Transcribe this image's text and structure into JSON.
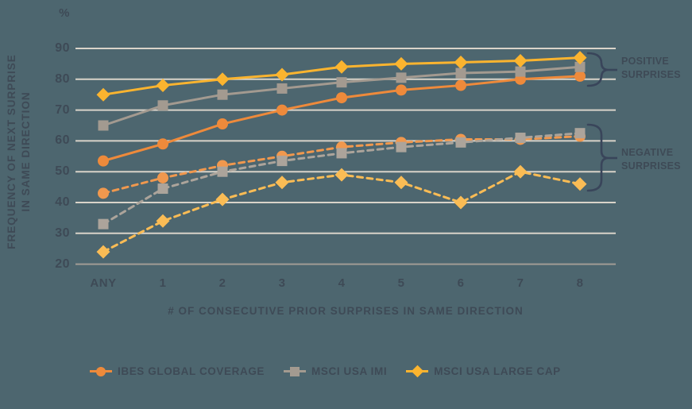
{
  "chart_data": {
    "type": "line",
    "unit_label": "%",
    "xlabel": "# OF CONSECUTIVE PRIOR SURPRISES IN SAME DIRECTION",
    "ylabel": "FREQUENCY OF NEXT SURPRISE IN SAME DIRECTION",
    "ylabel_lines": [
      "FREQUENCY OF NEXT SURPRISE",
      "IN SAME DIRECTION"
    ],
    "categories": [
      "ANY",
      "1",
      "2",
      "3",
      "4",
      "5",
      "6",
      "7",
      "8"
    ],
    "ylim": [
      20,
      90
    ],
    "yticks": [
      90,
      80,
      70,
      60,
      50,
      40,
      30,
      20
    ],
    "grid": true,
    "legend_position": "bottom",
    "style": {
      "background": "#4D666F",
      "grid_color": "#D9D3C9",
      "axis_line_color": "#A19C95",
      "text_color": "#3E4A56",
      "brace_color": "#39455A"
    },
    "series": [
      {
        "name": "IBES GLOBAL COVERAGE",
        "group": "positive surprises",
        "style": "solid",
        "marker": "circle",
        "color": "#EE8A3B",
        "values": [
          53.5,
          59,
          65.5,
          70,
          74,
          76.5,
          78,
          80,
          81
        ]
      },
      {
        "name": "MSCI USA IMI",
        "group": "positive surprises",
        "style": "solid",
        "marker": "square",
        "color": "#A39A90",
        "values": [
          65,
          71.5,
          75,
          77,
          79,
          80.5,
          82,
          82.5,
          84
        ]
      },
      {
        "name": "MSCI USA LARGE CAP",
        "group": "positive surprises",
        "style": "solid",
        "marker": "diamond",
        "color": "#FBB42F",
        "values": [
          75,
          78,
          80,
          81.5,
          84,
          85,
          85.5,
          86,
          87
        ]
      },
      {
        "name": "IBES GLOBAL COVERAGE",
        "group": "negative surprises",
        "style": "dashed",
        "marker": "circle",
        "color": "#F0984E",
        "values": [
          43,
          48,
          52,
          55,
          58,
          59.5,
          60.5,
          60.5,
          61.5
        ]
      },
      {
        "name": "MSCI USA IMI",
        "group": "negative surprises",
        "style": "dashed",
        "marker": "square",
        "color": "#ACA49B",
        "values": [
          33,
          44.5,
          50,
          53.5,
          56,
          58,
          59.5,
          61,
          62.5
        ]
      },
      {
        "name": "MSCI USA LARGE CAP",
        "group": "negative surprises",
        "style": "dashed",
        "marker": "diamond",
        "color": "#FABC55",
        "values": [
          24,
          34,
          41,
          46.5,
          49,
          46.5,
          40,
          50,
          46
        ]
      }
    ],
    "annotations": [
      {
        "label_lines": [
          "POSITIVE",
          "SURPRISES"
        ],
        "applies_to": "solid lines"
      },
      {
        "label_lines": [
          "NEGATIVE",
          "SURPRISES"
        ],
        "applies_to": "dashed lines"
      }
    ]
  },
  "legend": {
    "items": [
      {
        "label": "IBES GLOBAL COVERAGE",
        "marker": "circle",
        "color": "#EE8A3B"
      },
      {
        "label": "MSCI USA IMI",
        "marker": "square",
        "color": "#A39A90"
      },
      {
        "label": "MSCI USA LARGE CAP",
        "marker": "diamond",
        "color": "#FBB42F"
      }
    ]
  }
}
